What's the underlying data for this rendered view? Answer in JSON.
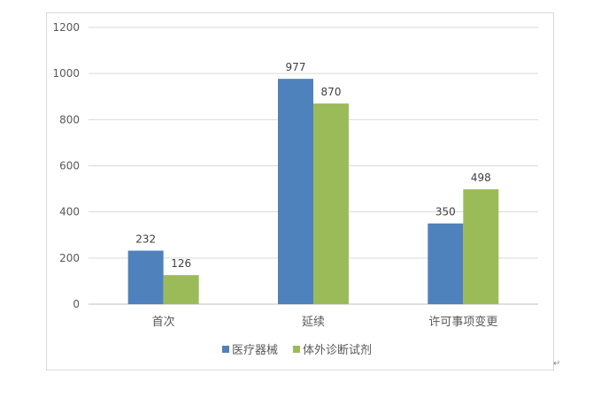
{
  "chart_data": {
    "type": "bar",
    "title": "",
    "xlabel": "",
    "ylabel": "",
    "categories": [
      "首次",
      "延续",
      "许可事项变更"
    ],
    "series": [
      {
        "name": "医疗器械",
        "values": [
          232,
          977,
          350
        ],
        "color": "#4f81bd"
      },
      {
        "name": "体外诊断试剂",
        "values": [
          126,
          870,
          498
        ],
        "color": "#9bbb59"
      }
    ],
    "ylim": [
      0,
      1200
    ],
    "yticks": [
      0,
      200,
      400,
      600,
      800,
      1000,
      1200
    ],
    "grid": true,
    "legend": "bottom",
    "data_labels": true
  }
}
